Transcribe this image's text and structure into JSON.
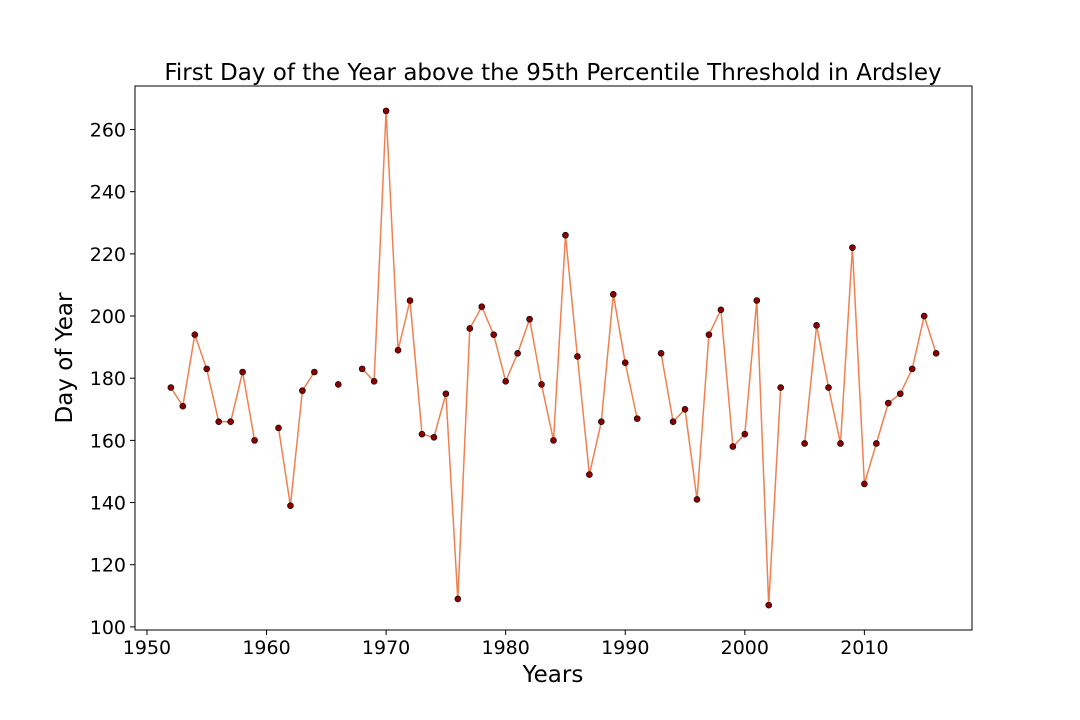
{
  "chart_data": {
    "type": "line",
    "title": "First Day of the Year above the 95th Percentile Threshold in Ardsley",
    "xlabel": "Years",
    "ylabel": "Day of Year",
    "xlim": [
      1949,
      2019
    ],
    "ylim": [
      99,
      274
    ],
    "xticks": [
      1950,
      1960,
      1970,
      1980,
      1990,
      2000,
      2010
    ],
    "yticks": [
      100,
      120,
      140,
      160,
      180,
      200,
      220,
      240,
      260
    ],
    "grid": false,
    "line_color": "#f08050",
    "marker_color": "#8b0000",
    "x": [
      1952,
      1953,
      1954,
      1955,
      1956,
      1957,
      1958,
      1959,
      1960,
      1961,
      1962,
      1963,
      1964,
      1965,
      1966,
      1967,
      1968,
      1969,
      1970,
      1971,
      1972,
      1973,
      1974,
      1975,
      1976,
      1977,
      1978,
      1979,
      1980,
      1981,
      1982,
      1983,
      1984,
      1985,
      1986,
      1987,
      1988,
      1989,
      1990,
      1991,
      1992,
      1993,
      1994,
      1995,
      1996,
      1997,
      1998,
      1999,
      2000,
      2001,
      2002,
      2003,
      2004,
      2005,
      2006,
      2007,
      2008,
      2009,
      2010,
      2011,
      2012,
      2013,
      2014,
      2015,
      2016
    ],
    "y": [
      177,
      171,
      194,
      183,
      166,
      166,
      182,
      160,
      null,
      164,
      139,
      176,
      182,
      null,
      178,
      null,
      183,
      179,
      266,
      189,
      205,
      162,
      161,
      175,
      109,
      196,
      203,
      194,
      179,
      188,
      199,
      178,
      160,
      226,
      187,
      149,
      166,
      207,
      185,
      167,
      null,
      188,
      166,
      170,
      141,
      194,
      202,
      158,
      162,
      205,
      107,
      177,
      null,
      159,
      197,
      177,
      159,
      222,
      146,
      159,
      172,
      175,
      183,
      200,
      188
    ]
  }
}
